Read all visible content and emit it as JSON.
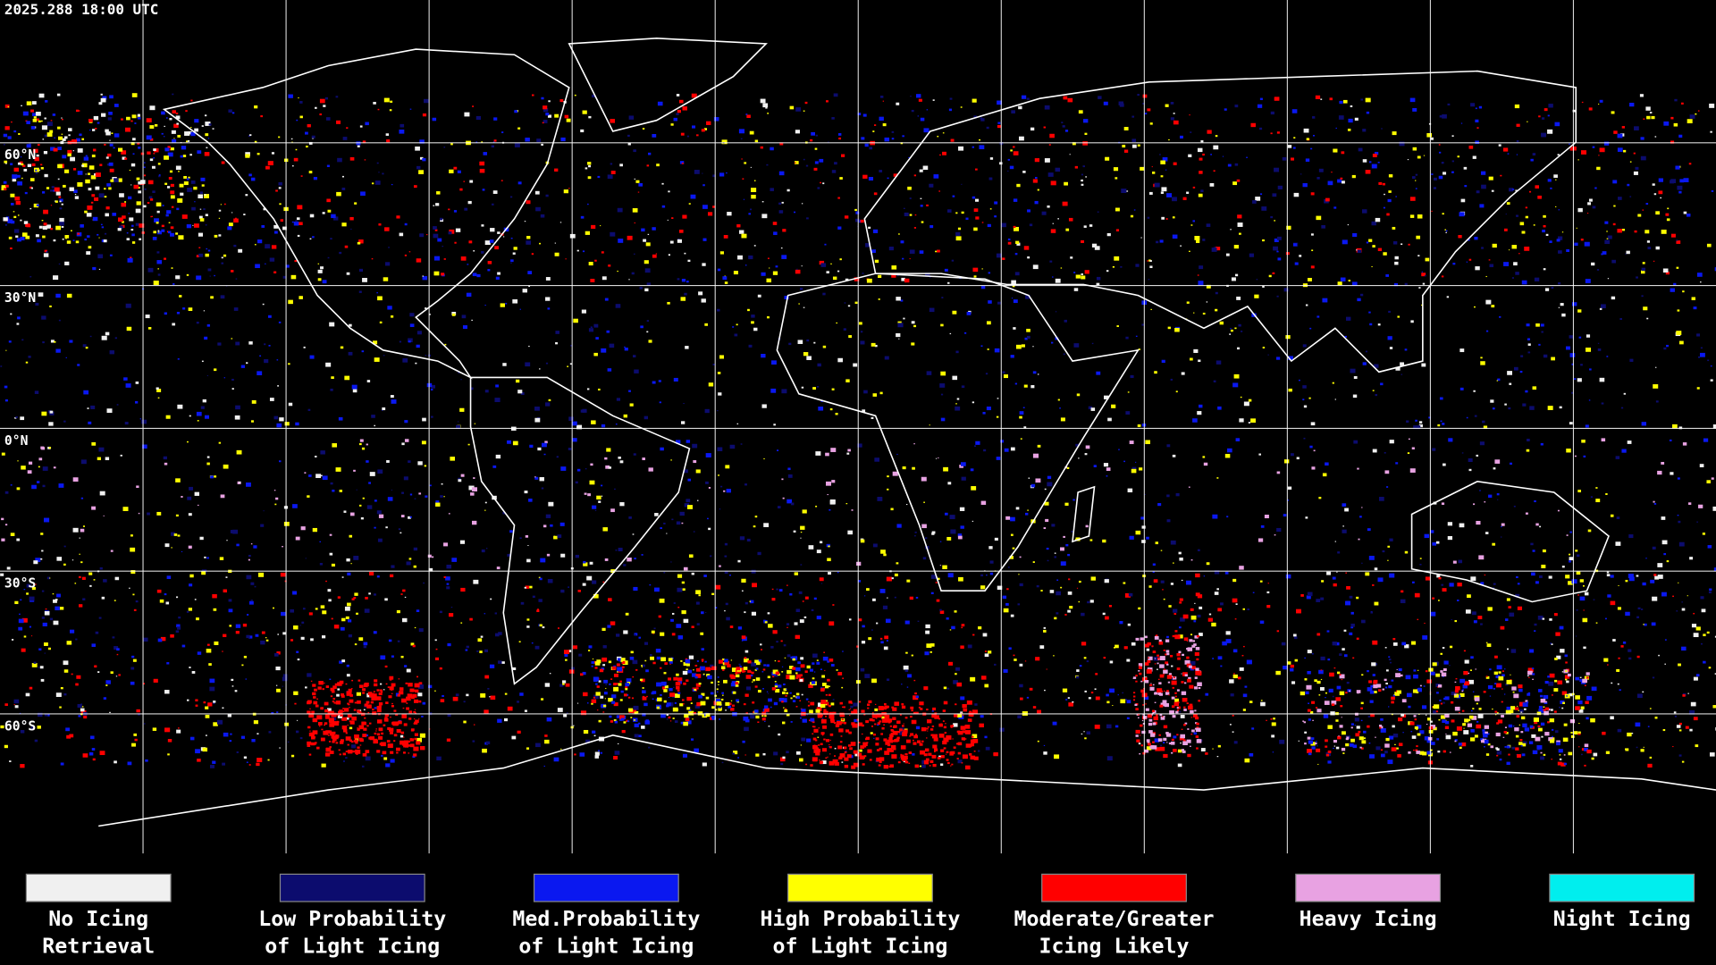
{
  "header": {
    "timestamp": "2025.288 18:00 UTC"
  },
  "map": {
    "latitude_labels": [
      "60°N",
      "30°N",
      "0°N",
      "30°S",
      "60°S"
    ]
  },
  "legend": [
    {
      "color": "#f0f0f0",
      "label": [
        "No Icing",
        "Retrieval"
      ]
    },
    {
      "color": "#0c0c6e",
      "label": [
        "Low Probability",
        "of Light Icing"
      ]
    },
    {
      "color": "#0a18f0",
      "label": [
        "Med.Probability",
        "of Light Icing"
      ]
    },
    {
      "color": "#ffff00",
      "label": [
        "High Probability",
        "of Light Icing"
      ]
    },
    {
      "color": "#ff0000",
      "label": [
        "Moderate/Greater",
        "Icing Likely"
      ]
    },
    {
      "color": "#e8a2e2",
      "label": [
        "Heavy Icing"
      ]
    },
    {
      "color": "#00eeee",
      "label": [
        "Night Icing"
      ]
    }
  ]
}
